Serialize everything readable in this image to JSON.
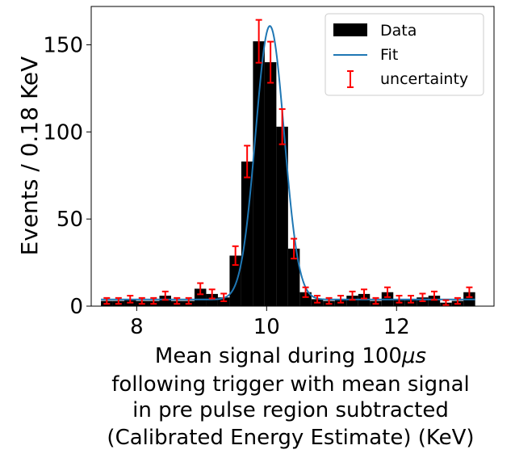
{
  "chart_data": {
    "type": "bar",
    "title": "",
    "xlabel_lines": [
      "Mean signal during 100μs",
      "following trigger with mean signal",
      "in pre pulse region subtracted",
      "(Calibrated Energy Estimate) (KeV)"
    ],
    "ylabel": "Events / 0.18 KeV",
    "xlim": [
      7.3,
      13.5
    ],
    "ylim": [
      0,
      172
    ],
    "xticks": [
      "8",
      "10",
      "12"
    ],
    "yticks": [
      "0",
      "50",
      "100",
      "150"
    ],
    "bin_width": 0.18,
    "bins_start": 7.45,
    "values": [
      3,
      3,
      4,
      3,
      3,
      6,
      3,
      3,
      10,
      7,
      5,
      29,
      83,
      152,
      140,
      103,
      33,
      8,
      4,
      3,
      4,
      6,
      7,
      3,
      8,
      4,
      4,
      5,
      6,
      2,
      3,
      8
    ],
    "errors": [
      1.7,
      1.7,
      2,
      1.7,
      1.7,
      2.4,
      1.7,
      1.7,
      3.2,
      2.6,
      2.2,
      5.4,
      9.1,
      12.3,
      11.8,
      10.1,
      5.7,
      2.8,
      2,
      1.7,
      2,
      2.4,
      2.6,
      1.7,
      2.8,
      2,
      2,
      2.2,
      2.4,
      1.4,
      1.7,
      2.8
    ],
    "fit": {
      "amplitude": 157,
      "mean": 10.05,
      "sigma": 0.22,
      "baseline": 3.8
    },
    "legend": {
      "position": "top-right",
      "entries": [
        "Data",
        "Fit",
        "uncertainty"
      ]
    },
    "grid": false,
    "colors": {
      "bars": "#000000",
      "fit": "#1f77b4",
      "errorbars": "#ff0000"
    }
  }
}
